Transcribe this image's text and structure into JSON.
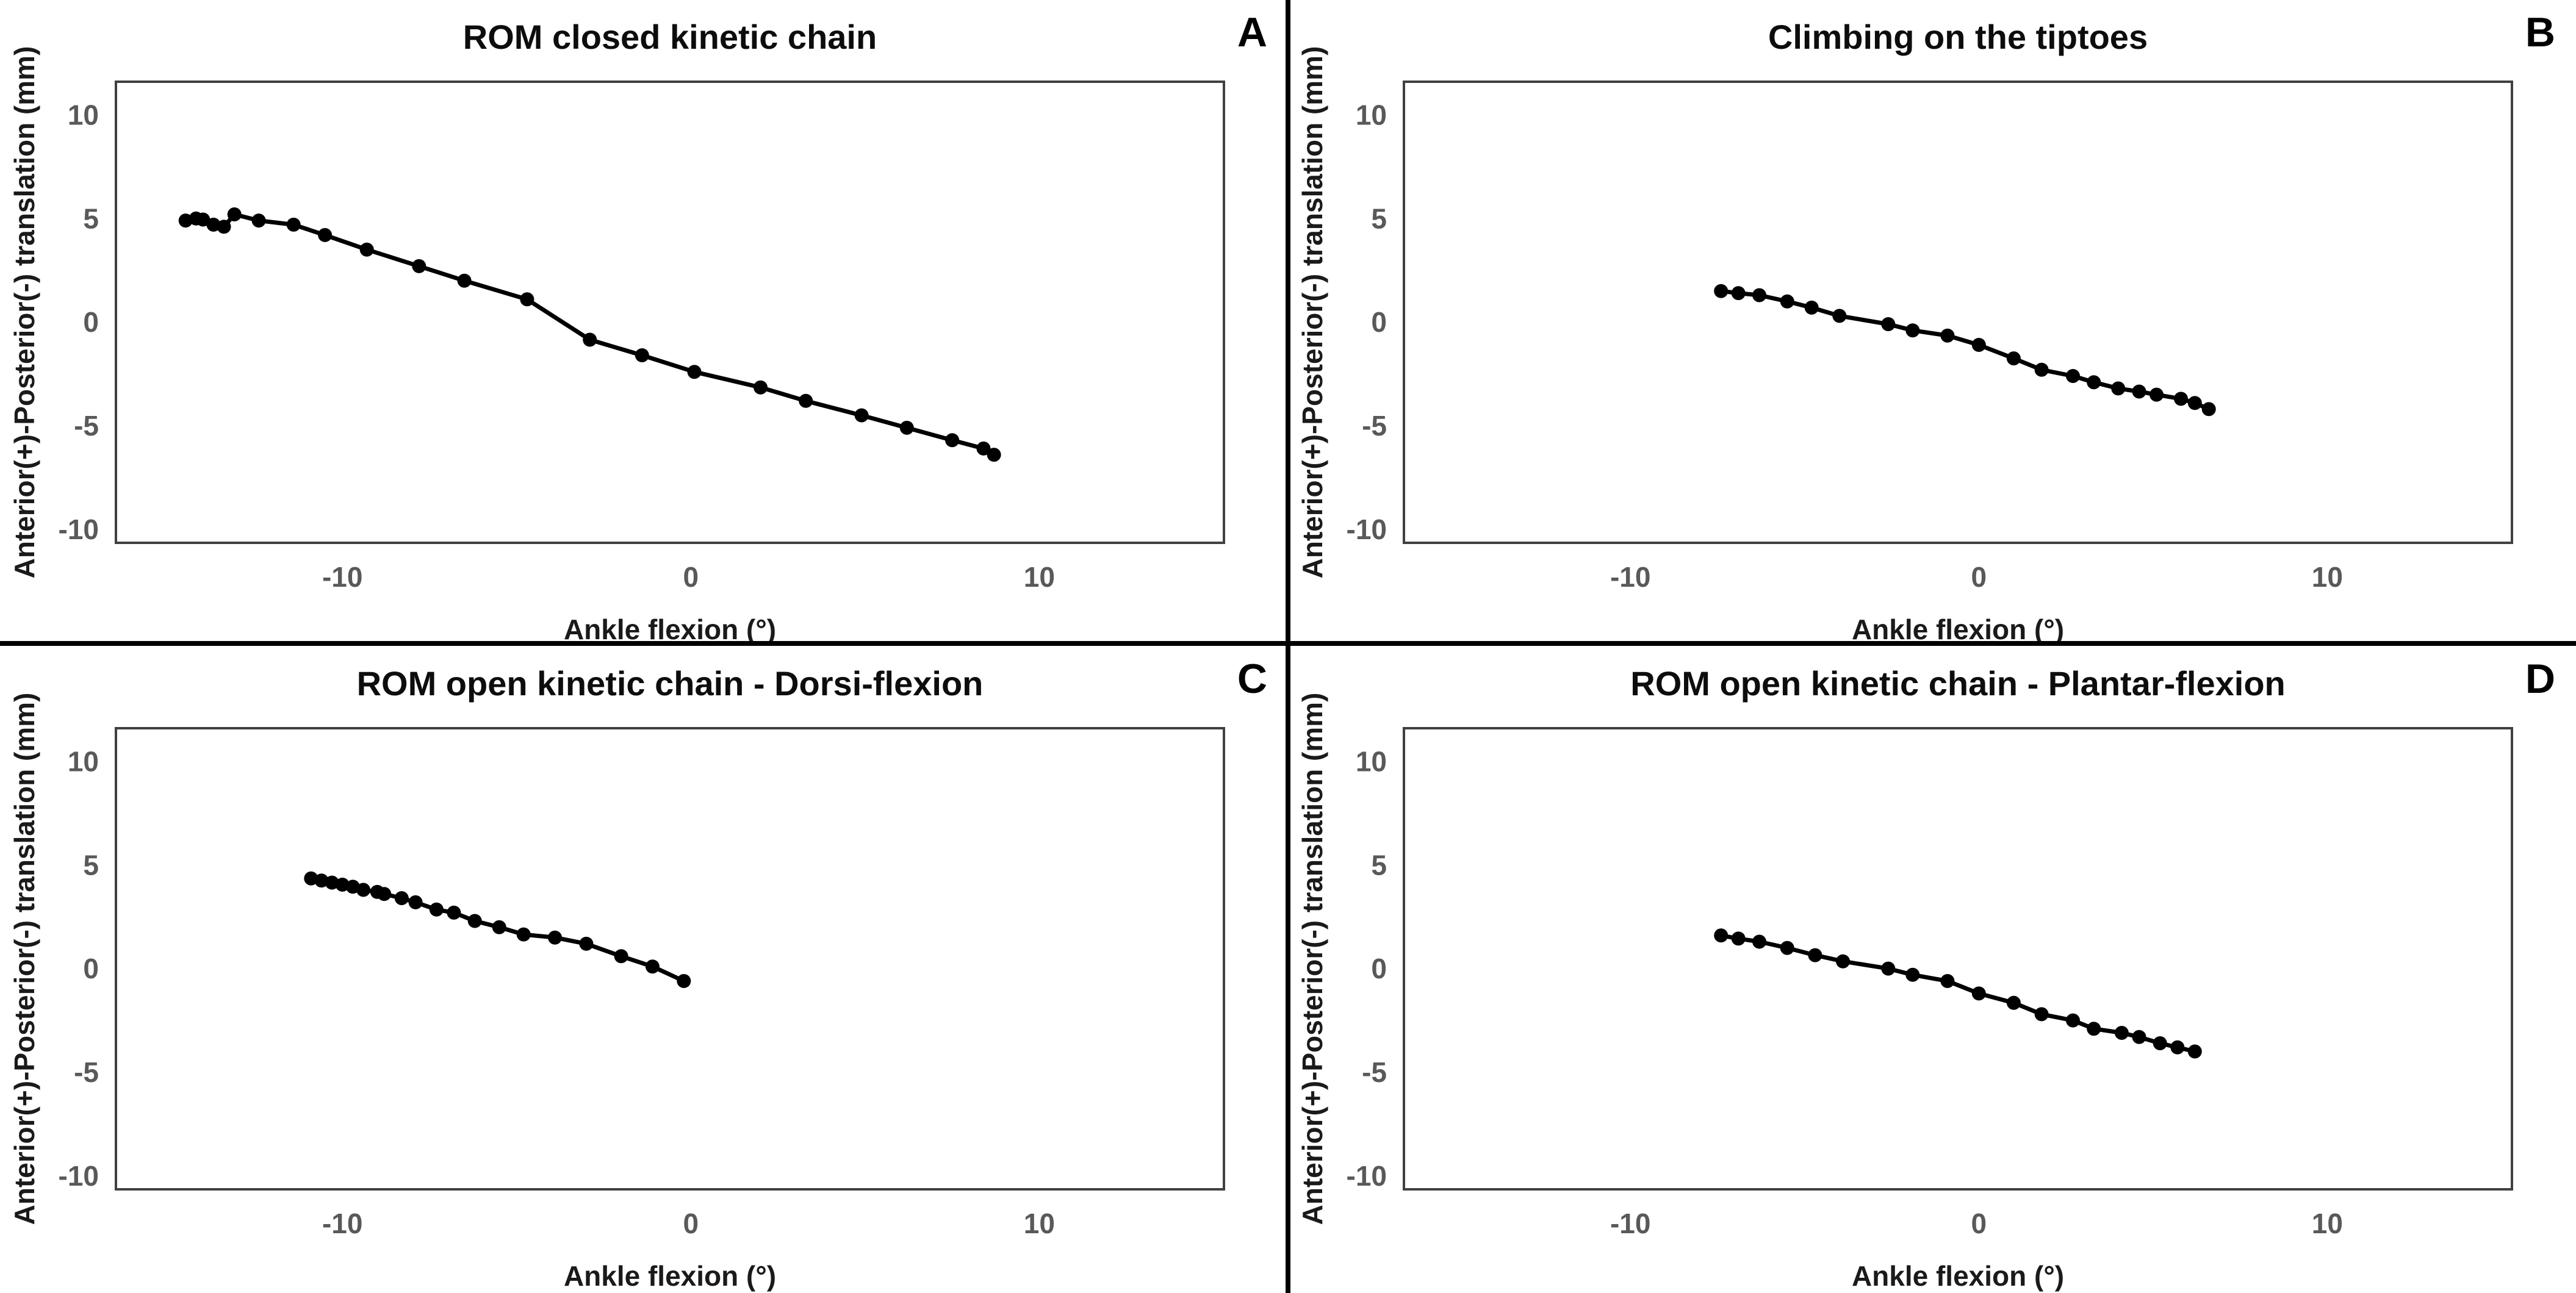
{
  "figure": {
    "background": "#ffffff",
    "divider_color": "#000000",
    "plot_border_color": "#404040",
    "series_color": "#000000",
    "tick_label_color": "#595959"
  },
  "chart_data": [
    {
      "type": "line",
      "panel_label": "A",
      "title": "ROM closed kinetic chain",
      "xlabel": "Ankle flexion (°)",
      "ylabel": "Anterior(+)-Posterior(-) translation (mm)",
      "x_ticks": [
        -10,
        0,
        10
      ],
      "y_ticks": [
        10,
        5,
        0,
        -5,
        -10
      ],
      "xlim": [
        -16.5,
        15.3
      ],
      "ylim": [
        -10.65,
        11.6
      ],
      "grid": false,
      "legend": "none",
      "marker": "circle",
      "points": [
        [
          -14.5,
          4.9
        ],
        [
          -14.2,
          5.0
        ],
        [
          -14.0,
          4.95
        ],
        [
          -13.7,
          4.7
        ],
        [
          -13.4,
          4.6
        ],
        [
          -13.1,
          5.2
        ],
        [
          -12.4,
          4.9
        ],
        [
          -11.4,
          4.7
        ],
        [
          -10.5,
          4.2
        ],
        [
          -9.3,
          3.5
        ],
        [
          -7.8,
          2.7
        ],
        [
          -6.5,
          2.0
        ],
        [
          -4.7,
          1.1
        ],
        [
          -2.9,
          -0.85
        ],
        [
          -1.4,
          -1.6
        ],
        [
          0.1,
          -2.4
        ],
        [
          2.0,
          -3.15
        ],
        [
          3.3,
          -3.8
        ],
        [
          4.9,
          -4.5
        ],
        [
          6.2,
          -5.1
        ],
        [
          7.5,
          -5.7
        ],
        [
          8.4,
          -6.1
        ],
        [
          8.7,
          -6.4
        ]
      ]
    },
    {
      "type": "line",
      "panel_label": "B",
      "title": "Climbing on the tiptoes",
      "xlabel": "Ankle flexion (°)",
      "ylabel": "Anterior(+)-Posterior(-) translation (mm)",
      "x_ticks": [
        -10,
        0,
        10
      ],
      "y_ticks": [
        10,
        5,
        0,
        -5,
        -10
      ],
      "xlim": [
        -16.5,
        15.3
      ],
      "ylim": [
        -10.65,
        11.6
      ],
      "grid": false,
      "legend": "none",
      "marker": "circle",
      "points": [
        [
          -7.4,
          1.5
        ],
        [
          -6.9,
          1.4
        ],
        [
          -6.3,
          1.3
        ],
        [
          -5.5,
          1.0
        ],
        [
          -4.8,
          0.7
        ],
        [
          -4.0,
          0.3
        ],
        [
          -2.6,
          -0.1
        ],
        [
          -1.9,
          -0.4
        ],
        [
          -0.9,
          -0.65
        ],
        [
          0.0,
          -1.1
        ],
        [
          1.0,
          -1.75
        ],
        [
          1.8,
          -2.3
        ],
        [
          2.7,
          -2.6
        ],
        [
          3.3,
          -2.9
        ],
        [
          4.0,
          -3.2
        ],
        [
          4.6,
          -3.35
        ],
        [
          5.1,
          -3.5
        ],
        [
          5.8,
          -3.7
        ],
        [
          6.2,
          -3.9
        ],
        [
          6.6,
          -4.2
        ]
      ]
    },
    {
      "type": "line",
      "panel_label": "C",
      "title": "ROM open kinetic chain - Dorsi-flexion",
      "xlabel": "Ankle flexion (°)",
      "ylabel": "Anterior(+)-Posterior(-) translation (mm)",
      "x_ticks": [
        -10,
        0,
        10
      ],
      "y_ticks": [
        10,
        5,
        0,
        -5,
        -10
      ],
      "xlim": [
        -16.5,
        15.3
      ],
      "ylim": [
        -10.65,
        11.6
      ],
      "grid": false,
      "legend": "none",
      "marker": "circle",
      "points": [
        [
          -10.9,
          4.35
        ],
        [
          -10.6,
          4.25
        ],
        [
          -10.3,
          4.15
        ],
        [
          -10.0,
          4.05
        ],
        [
          -9.7,
          3.95
        ],
        [
          -9.4,
          3.8
        ],
        [
          -9.0,
          3.7
        ],
        [
          -8.8,
          3.6
        ],
        [
          -8.3,
          3.4
        ],
        [
          -7.9,
          3.2
        ],
        [
          -7.3,
          2.85
        ],
        [
          -6.8,
          2.7
        ],
        [
          -6.2,
          2.3
        ],
        [
          -5.5,
          2.0
        ],
        [
          -4.8,
          1.65
        ],
        [
          -3.9,
          1.5
        ],
        [
          -3.0,
          1.2
        ],
        [
          -2.0,
          0.6
        ],
        [
          -1.1,
          0.1
        ],
        [
          -0.2,
          -0.6
        ]
      ]
    },
    {
      "type": "line",
      "panel_label": "D",
      "title": "ROM open kinetic chain - Plantar-flexion",
      "xlabel": "Ankle flexion (°)",
      "ylabel": "Anterior(+)-Posterior(-) translation (mm)",
      "x_ticks": [
        -10,
        0,
        10
      ],
      "y_ticks": [
        10,
        5,
        0,
        -5,
        -10
      ],
      "xlim": [
        -16.5,
        15.3
      ],
      "ylim": [
        -10.65,
        11.6
      ],
      "grid": false,
      "legend": "none",
      "marker": "circle",
      "points": [
        [
          -7.4,
          1.6
        ],
        [
          -6.9,
          1.45
        ],
        [
          -6.3,
          1.3
        ],
        [
          -5.5,
          1.0
        ],
        [
          -4.7,
          0.65
        ],
        [
          -3.9,
          0.35
        ],
        [
          -2.6,
          0.0
        ],
        [
          -1.9,
          -0.3
        ],
        [
          -0.9,
          -0.6
        ],
        [
          0.0,
          -1.2
        ],
        [
          1.0,
          -1.65
        ],
        [
          1.8,
          -2.2
        ],
        [
          2.7,
          -2.5
        ],
        [
          3.3,
          -2.9
        ],
        [
          4.1,
          -3.1
        ],
        [
          4.6,
          -3.3
        ],
        [
          5.2,
          -3.6
        ],
        [
          5.7,
          -3.8
        ],
        [
          6.2,
          -4.0
        ]
      ]
    }
  ]
}
